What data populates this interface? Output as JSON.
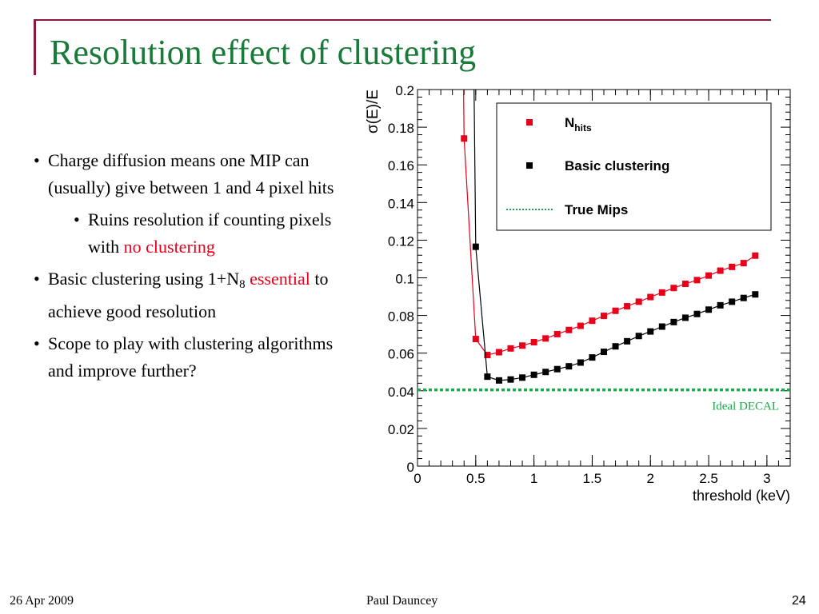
{
  "slide": {
    "title": "Resolution effect of clustering",
    "footer": {
      "date": "26 Apr 2009",
      "author": "Paul Dauncey",
      "page": "24"
    }
  },
  "bullets": {
    "b1": "Charge diffusion means one MIP can (usually) give between 1 and 4 pixel hits",
    "b1_1_pre": "Ruins resolution if counting pixels with ",
    "b1_1_red": "no clustering",
    "b2_pre": "Basic clustering using 1+N",
    "b2_sub": "8",
    "b2_red": "essential",
    "b2_post": " to achieve good resolution",
    "b3": "Scope to play with clustering algorithms and improve further?"
  },
  "colors": {
    "title": "#1a7a3a",
    "accent_rule": "#8b1a3a",
    "highlight": "#e8001a",
    "nhits": "#e8001a",
    "basic": "#000000",
    "truemips": "#1aaa4a"
  },
  "chart_data": {
    "type": "line",
    "xlabel": "threshold (keV)",
    "ylabel": "σ(E)/E",
    "xlim": [
      0,
      3.2
    ],
    "ylim": [
      0,
      0.2
    ],
    "x_ticks": [
      "0",
      "0.5",
      "1",
      "1.5",
      "2",
      "2.5",
      "3"
    ],
    "y_ticks": [
      "0",
      "0.02",
      "0.04",
      "0.06",
      "0.08",
      "0.1",
      "0.12",
      "0.14",
      "0.16",
      "0.18",
      "0.2"
    ],
    "legend_position": "top-right",
    "series": [
      {
        "name": "N",
        "name_sub": "hits",
        "color": "#e8001a",
        "marker": "square",
        "x": [
          0.4,
          0.5,
          0.6,
          0.7,
          0.8,
          0.9,
          1.0,
          1.1,
          1.2,
          1.3,
          1.4,
          1.5,
          1.6,
          1.7,
          1.8,
          1.9,
          2.0,
          2.1,
          2.2,
          2.3,
          2.4,
          2.5,
          2.6,
          2.7,
          2.8,
          2.9
        ],
        "y": [
          0.174,
          0.0675,
          0.059,
          0.0605,
          0.0625,
          0.064,
          0.0658,
          0.0678,
          0.0701,
          0.0723,
          0.0745,
          0.0772,
          0.0798,
          0.0825,
          0.0849,
          0.0873,
          0.0898,
          0.0922,
          0.0946,
          0.0968,
          0.0988,
          0.1012,
          0.1038,
          0.1058,
          0.1078,
          0.1118
        ]
      },
      {
        "name": "Basic clustering",
        "color": "#000000",
        "marker": "square",
        "x": [
          0.5,
          0.6,
          0.7,
          0.8,
          0.9,
          1.0,
          1.1,
          1.2,
          1.3,
          1.4,
          1.5,
          1.6,
          1.7,
          1.8,
          1.9,
          2.0,
          2.1,
          2.2,
          2.3,
          2.4,
          2.5,
          2.6,
          2.7,
          2.8,
          2.9
        ],
        "y": [
          0.1165,
          0.0475,
          0.0455,
          0.046,
          0.047,
          0.0485,
          0.05,
          0.0515,
          0.053,
          0.055,
          0.0577,
          0.0607,
          0.0636,
          0.0663,
          0.0691,
          0.0715,
          0.0741,
          0.0765,
          0.0788,
          0.0808,
          0.0831,
          0.0854,
          0.0873,
          0.0893,
          0.0912
        ]
      }
    ],
    "reference_line": {
      "name": "True Mips",
      "y": 0.0405,
      "color": "#1aaa4a",
      "style": "dotted"
    },
    "annotation": {
      "text": "Ideal DECAL",
      "color": "#1aaa4a"
    }
  }
}
